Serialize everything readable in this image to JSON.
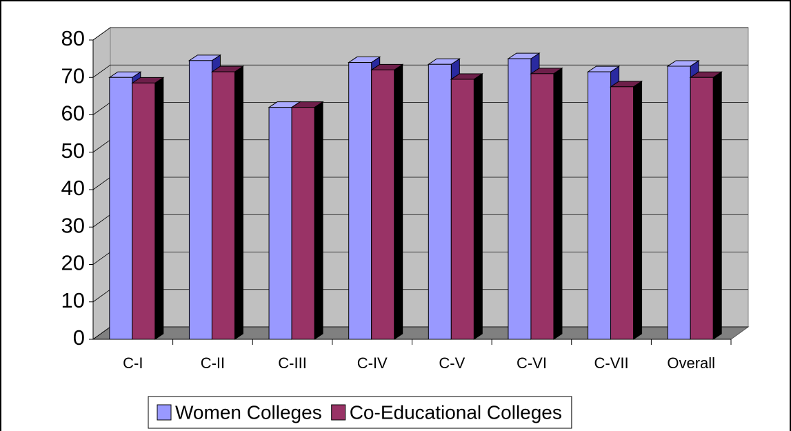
{
  "chart_data": {
    "type": "bar3d",
    "categories": [
      "C-I",
      "C-II",
      "C-III",
      "C-IV",
      "C-V",
      "C-VI",
      "C-VII",
      "Overall"
    ],
    "series": [
      {
        "name": "Women Colleges",
        "color": "#9999ff",
        "values": [
          70,
          74.5,
          62,
          74,
          73.5,
          75,
          71.5,
          73
        ]
      },
      {
        "name": "Co-Educational Colleges",
        "color": "#993366",
        "values": [
          68.5,
          71.5,
          62,
          72,
          69.5,
          71,
          67.5,
          70
        ]
      }
    ],
    "ylim": [
      0,
      80
    ],
    "yticks": [
      0,
      10,
      20,
      30,
      40,
      50,
      60,
      70,
      80
    ],
    "grid": true,
    "legend": "bottom"
  }
}
